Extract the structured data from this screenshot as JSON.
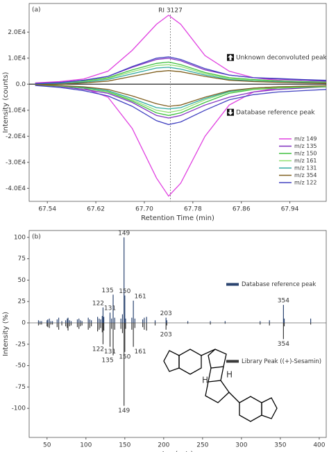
{
  "chart_data": [
    {
      "type": "line",
      "panel_label": "(a)",
      "xlabel": "Retention Time (min)",
      "ylabel": "Intensity (counts)",
      "upper_annotation": "Unknown deconvoluted peak",
      "lower_annotation": "Database reference peak",
      "reference_line": {
        "x": 67.743,
        "label": "RI 3127"
      },
      "xlim": [
        67.51,
        68.0
      ],
      "xticks": [
        67.54,
        67.62,
        {
          "value": 67.7,
          "label": "67.70"
        },
        67.78,
        67.86,
        67.94
      ],
      "ylim": [
        -45000,
        31000
      ],
      "yticks": [
        {
          "value": 20000,
          "label": "2.0E4"
        },
        {
          "value": 10000,
          "label": "1.0E4"
        },
        {
          "value": 0,
          "label": "0.0"
        },
        {
          "value": -10000,
          "label": "-1.0E4"
        },
        {
          "value": -20000,
          "label": "-2.0E4"
        },
        {
          "value": -30000,
          "label": "-3.0E4"
        },
        {
          "value": -40000,
          "label": "-4.0E4"
        }
      ],
      "x": [
        67.52,
        67.56,
        67.6,
        67.64,
        67.68,
        67.72,
        67.74,
        67.76,
        67.8,
        67.84,
        67.88,
        67.92,
        67.96,
        68.0
      ],
      "series": [
        {
          "name": "m/z 149",
          "color": "#e040e0",
          "values": [
            500,
            1000,
            2000,
            5000,
            13000,
            23000,
            26500,
            23000,
            11000,
            5000,
            2500,
            1500,
            1000,
            800
          ],
          "reference_values": [
            -200,
            -500,
            -1500,
            -5000,
            -17000,
            -36000,
            -43000,
            -38000,
            -20000,
            -8000,
            -3000,
            -1500,
            -1000,
            -800
          ]
        },
        {
          "name": "m/z 135",
          "color": "#8030c0",
          "values": [
            300,
            700,
            1500,
            3000,
            6500,
            9500,
            10000,
            9000,
            5500,
            3500,
            2500,
            2000,
            1500,
            1200
          ],
          "reference_values": [
            -300,
            -800,
            -2000,
            -3500,
            -7000,
            -12000,
            -13000,
            -12000,
            -8000,
            -5000,
            -3000,
            -2000,
            -1500,
            -1000
          ]
        },
        {
          "name": "m/z 150",
          "color": "#40c040",
          "values": [
            200,
            500,
            1200,
            2500,
            5500,
            8000,
            8500,
            7500,
            4500,
            2500,
            1800,
            1300,
            1000,
            800
          ],
          "reference_values": [
            -300,
            -700,
            -1500,
            -3000,
            -6500,
            -11000,
            -12000,
            -11000,
            -7000,
            -3500,
            -2000,
            -1500,
            -1200,
            -1000
          ]
        },
        {
          "name": "m/z 161",
          "color": "#90e070",
          "values": [
            100,
            400,
            1000,
            2200,
            4800,
            7200,
            7500,
            6800,
            4000,
            2200,
            1500,
            1000,
            800,
            600
          ],
          "reference_values": [
            -200,
            -600,
            -1300,
            -2800,
            -6000,
            -10000,
            -10800,
            -10000,
            -6000,
            -3000,
            -1800,
            -1200,
            -1000,
            -800
          ]
        },
        {
          "name": "m/z 131",
          "color": "#30a8a0",
          "values": [
            0,
            300,
            800,
            1800,
            4000,
            6200,
            6500,
            5800,
            3500,
            1800,
            1200,
            900,
            700,
            500
          ],
          "reference_values": [
            -100,
            -500,
            -1200,
            -2500,
            -5500,
            -9000,
            -9500,
            -9000,
            -5500,
            -2800,
            -1500,
            -1000,
            -800,
            -600
          ]
        },
        {
          "name": "m/z 354",
          "color": "#806020",
          "values": [
            -200,
            0,
            500,
            1200,
            3000,
            4800,
            5200,
            4800,
            3000,
            1500,
            1000,
            700,
            500,
            400
          ],
          "reference_values": [
            -200,
            -500,
            -1000,
            -2000,
            -4500,
            -7500,
            -8500,
            -8000,
            -5000,
            -2500,
            -1500,
            -1000,
            -800,
            -600
          ]
        },
        {
          "name": "m/z 122",
          "color": "#4040c0",
          "values": [
            200,
            600,
            1500,
            3000,
            6800,
            10000,
            10500,
            9500,
            6000,
            3500,
            2500,
            2200,
            1800,
            1500
          ],
          "reference_values": [
            -500,
            -1200,
            -2500,
            -4500,
            -8500,
            -14000,
            -15500,
            -14500,
            -10000,
            -6000,
            -4000,
            -3000,
            -2500,
            -2000
          ]
        }
      ]
    },
    {
      "type": "stem",
      "panel_label": "(b)",
      "xlabel": "Ion (m/z)",
      "ylabel": "Intensity (%)",
      "xlim": [
        27,
        409
      ],
      "xticks": [
        50,
        100,
        150,
        200,
        250,
        300,
        350,
        400
      ],
      "ylim": [
        -134,
        108
      ],
      "yticks": [
        100,
        75,
        50,
        25,
        0,
        -25,
        -50,
        -75,
        -100
      ],
      "peak_labels": [
        122,
        131,
        135,
        149,
        150,
        161,
        203,
        354
      ],
      "x": [
        39,
        41,
        43,
        50,
        51,
        53,
        55,
        57,
        63,
        65,
        69,
        74,
        76,
        77,
        79,
        81,
        89,
        91,
        93,
        95,
        103,
        105,
        107,
        115,
        117,
        119,
        121,
        122,
        123,
        131,
        133,
        135,
        137,
        145,
        147,
        149,
        150,
        151,
        159,
        161,
        163,
        173,
        175,
        178,
        189,
        203,
        204,
        231,
        260,
        279,
        324,
        336,
        354,
        355,
        389
      ],
      "series": [
        {
          "name": "Database reference peak",
          "color": "#2b4470",
          "values": [
            3,
            2,
            2,
            3,
            4,
            5,
            2,
            2,
            4,
            6,
            2,
            3,
            5,
            6,
            3,
            2,
            4,
            5,
            3,
            2,
            6,
            4,
            3,
            7,
            5,
            4,
            8,
            18,
            7,
            12,
            5,
            33,
            6,
            5,
            10,
            100,
            32,
            5,
            6,
            26,
            5,
            4,
            6,
            7,
            3,
            6,
            3,
            2,
            2,
            2,
            2,
            3,
            21,
            5,
            5
          ]
        },
        {
          "name": "Library Peak ((+)-Sesamin)",
          "color": "#3a3a3a",
          "values": [
            -3,
            -2,
            -2,
            -4,
            -5,
            -6,
            -2,
            -2,
            -5,
            -8,
            -3,
            -4,
            -6,
            -9,
            -4,
            -3,
            -5,
            -7,
            -4,
            -3,
            -8,
            -6,
            -4,
            -10,
            -8,
            -6,
            -11,
            -25,
            -9,
            -28,
            -7,
            -38,
            -8,
            -7,
            -12,
            -97,
            -34,
            -7,
            -8,
            -28,
            -6,
            -5,
            -8,
            -9,
            -3,
            -8,
            -3,
            -1,
            -2,
            -1,
            -2,
            -3,
            -19,
            -4,
            -2
          ]
        }
      ]
    }
  ]
}
